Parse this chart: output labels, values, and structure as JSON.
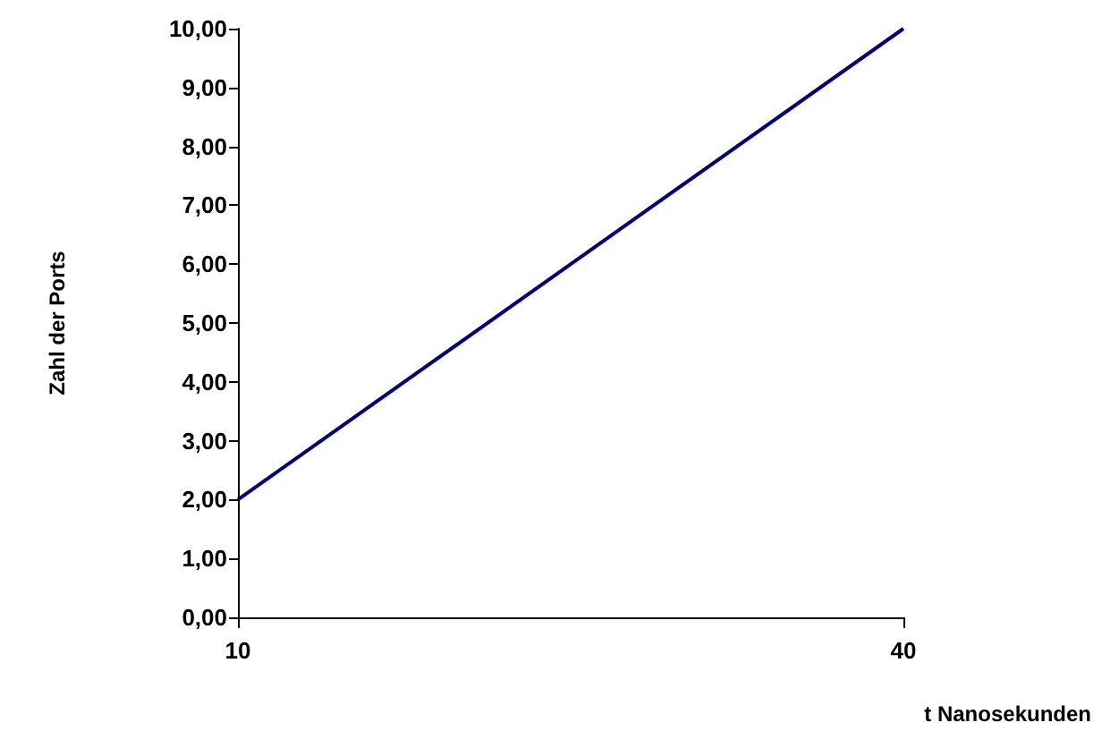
{
  "chart_data": {
    "type": "line",
    "xlabel": "t Nanosekunden",
    "ylabel": "Zahl der Ports",
    "x": [
      10,
      40
    ],
    "series": [
      {
        "color": "#000080",
        "values": [
          2,
          10
        ]
      }
    ],
    "xlim": [
      10,
      40
    ],
    "xticks": [
      10,
      40
    ],
    "ylim": [
      0,
      10
    ],
    "yticks": [
      {
        "value": 0,
        "label": "0,00"
      },
      {
        "value": 1,
        "label": "1,00"
      },
      {
        "value": 2,
        "label": "2,00"
      },
      {
        "value": 3,
        "label": "3,00"
      },
      {
        "value": 4,
        "label": "4,00"
      },
      {
        "value": 5,
        "label": "5,00"
      },
      {
        "value": 6,
        "label": "6,00"
      },
      {
        "value": 7,
        "label": "7,00"
      },
      {
        "value": 8,
        "label": "8,00"
      },
      {
        "value": 9,
        "label": "9,00"
      },
      {
        "value": 10,
        "label": "10,00"
      }
    ],
    "marker": "none",
    "line_style": "solid"
  }
}
